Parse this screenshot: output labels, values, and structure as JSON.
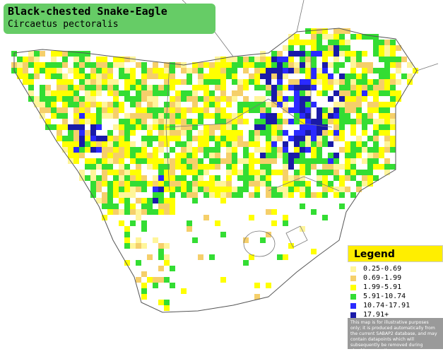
{
  "title": "Black-chested Snake-Eagle",
  "subtitle": "Circaetus pectoralis",
  "legend": {
    "title": "Legend",
    "items": [
      {
        "label": "0.25-0.69",
        "color": "#fff59a"
      },
      {
        "label": "0.69-1.99",
        "color": "#f5cf6a"
      },
      {
        "label": "1.99-5.91",
        "color": "#ffff00"
      },
      {
        "label": "5.91-10.74",
        "color": "#33dd33"
      },
      {
        "label": "10.74-17.91",
        "color": "#2a2aff"
      },
      {
        "label": "17.91+",
        "color": "#1a1aa8"
      }
    ],
    "disclaimer": "This map is for illustrative purposes only; it is produced automatically from the current SABAP2 database, and may contain datapoints which will subsequently be removed during checking operations."
  }
}
